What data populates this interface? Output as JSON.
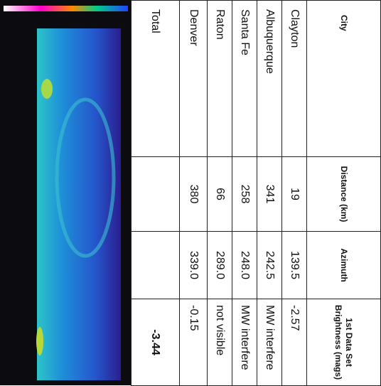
{
  "table": {
    "columns": [
      "City",
      "Distance (km)",
      "Azimuth",
      "1st Data Set Brightness (mags)"
    ],
    "rows": [
      [
        "Clayton",
        "19",
        "139.5",
        "-2.57"
      ],
      [
        "Albuquerque",
        "341",
        "242.5",
        "MW interfere"
      ],
      [
        "Santa Fe",
        "258",
        "248.0",
        "MW interfere"
      ],
      [
        "Raton",
        "66",
        "289.0",
        "not visible"
      ],
      [
        "Denver",
        "380",
        "339.0",
        "-0.15"
      ]
    ],
    "total": {
      "label": "Total",
      "brightness": "-3.44"
    }
  }
}
